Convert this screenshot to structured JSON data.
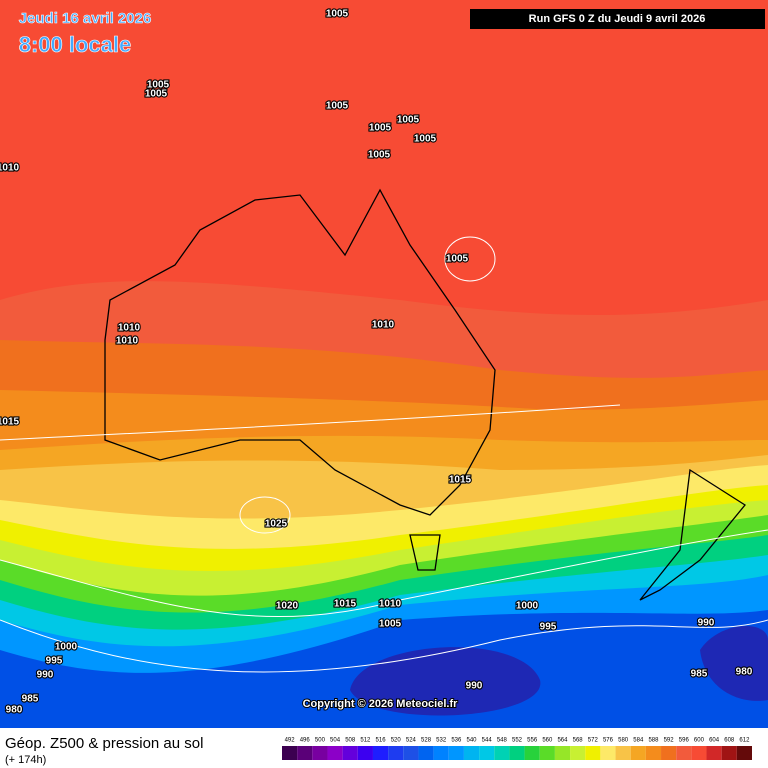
{
  "header": {
    "date": "Jeudi 16 avril 2026",
    "time": "8:00 locale",
    "run": "Run GFS 0 Z du Jeudi 9 avril 2026"
  },
  "isobar_labels": [
    "1005",
    "1005",
    "1005",
    "1005",
    "1005",
    "1005",
    "1005",
    "1005",
    "1010",
    "1005",
    "1010",
    "1010",
    "1010",
    "1015",
    "1015",
    "1025",
    "1020",
    "1015",
    "1010",
    "1000",
    "1005",
    "995",
    "990",
    "1000",
    "995",
    "990",
    "985",
    "980",
    "990",
    "985",
    "980"
  ],
  "copyright": "Copyright © 2026 Meteociel.fr",
  "footer": {
    "title": "Géop. Z500 & pression au sol",
    "lead": "(+ 174h)"
  },
  "legend": {
    "labels": [
      "492",
      "496",
      "500",
      "504",
      "508",
      "512",
      "516",
      "520",
      "524",
      "528",
      "532",
      "536",
      "540",
      "544",
      "548",
      "552",
      "556",
      "560",
      "564",
      "568",
      "572",
      "576",
      "580",
      "584",
      "588",
      "592",
      "596",
      "600",
      "604",
      "608",
      "612"
    ],
    "colors": [
      "#3c0050",
      "#5a0078",
      "#7800a0",
      "#8c00c8",
      "#6400dc",
      "#3c00f0",
      "#1e1eff",
      "#1e3cf0",
      "#1e50e6",
      "#0064f0",
      "#0082ff",
      "#0096ff",
      "#00b4f0",
      "#00c8e6",
      "#00d2b4",
      "#00d080",
      "#28d23c",
      "#5adc28",
      "#96e628",
      "#c8f032",
      "#f0f000",
      "#fde968",
      "#f8c347",
      "#f5a623",
      "#f48c1c",
      "#f0701e",
      "#f25b3c",
      "#f74b34",
      "#d22828",
      "#a01414",
      "#640a0a"
    ]
  }
}
